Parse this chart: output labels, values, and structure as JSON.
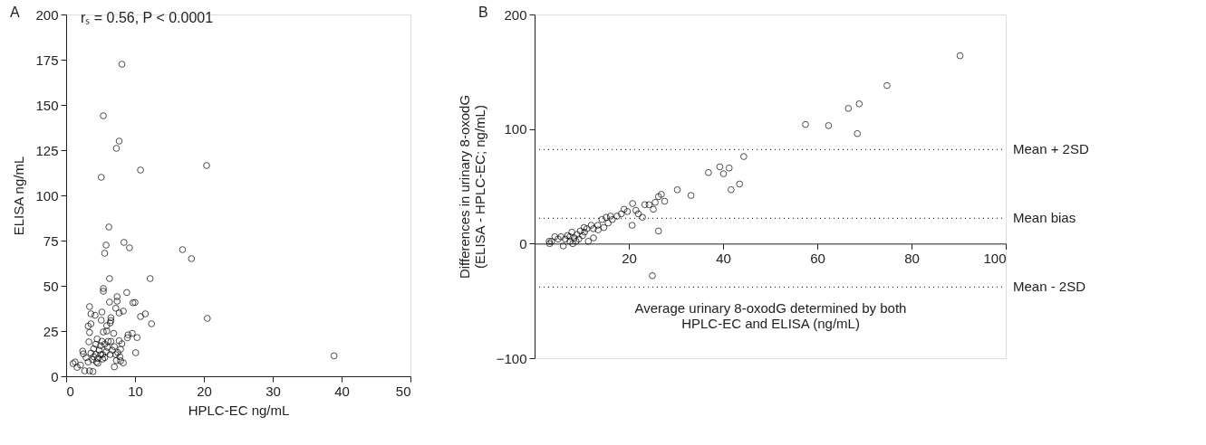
{
  "chart_data": [
    {
      "type": "scatter",
      "xlabel": "HPLC-EC ng/mL",
      "ylabel": "ELISA ng/mL",
      "annotations": [
        "A",
        "rₛ = 0.56, P < 0.0001"
      ],
      "xlim": [
        0,
        50
      ],
      "xticks": [
        0,
        10,
        20,
        30,
        40,
        50
      ],
      "ylim": [
        0,
        200
      ],
      "yticks": [
        0,
        25,
        50,
        75,
        100,
        125,
        150,
        175,
        200
      ],
      "grid": false,
      "marker": "circle",
      "series": [
        {
          "color": "#000000",
          "x": [
            8.1,
            5.4,
            7.7,
            7.3,
            10.8,
            20.4,
            5.1,
            6.2,
            8.4,
            5.8,
            9.2,
            5.6,
            16.9,
            18.2,
            6.3,
            12.2,
            5.4,
            5.4,
            8.8,
            7.4,
            7.4,
            6.3,
            9.7,
            10.0,
            3.4,
            7.2,
            8.3,
            7.7,
            5.2,
            3.6,
            4.2,
            6.5,
            11.5,
            10.8,
            5.1,
            6.5,
            6.4,
            12.4,
            20.5,
            3.2,
            3.6,
            5.9,
            3.4,
            5.4,
            5.9,
            6.9,
            9.0,
            9.6,
            8.9,
            10.3,
            3.3,
            4.5,
            5.2,
            6.1,
            6.5,
            7.7,
            8.1,
            7.9,
            10.1,
            2.4,
            2.5,
            1.0,
            1.3,
            1.6,
            2.1,
            2.7,
            3.4,
            3.9,
            7.0,
            8.3,
            7.9,
            7.3,
            38.9,
            2.9,
            3.6,
            4.0,
            4.3,
            4.6,
            4.8,
            5.0,
            5.3,
            5.6,
            5.8,
            6.0,
            6.4,
            6.7,
            7.0,
            7.2,
            7.5,
            7.8,
            3.2,
            3.8,
            4.4,
            4.6,
            5.3,
            4.0,
            5.0,
            4.3,
            5.6
          ],
          "values": [
            172.5,
            144,
            130,
            126,
            114,
            116.5,
            110,
            82.5,
            74,
            72.5,
            71,
            68,
            70,
            65,
            54,
            54,
            48.5,
            47,
            46.3,
            44,
            41.5,
            41,
            40.6,
            40.8,
            38.5,
            37.6,
            36,
            35,
            35.5,
            34.5,
            33.7,
            32.4,
            34.5,
            33,
            31,
            30.8,
            29.5,
            29,
            32,
            27.7,
            29,
            28,
            24.2,
            24.5,
            25,
            23.7,
            22.9,
            23.7,
            21.3,
            21.4,
            19,
            20.6,
            19.3,
            19.3,
            19.3,
            19.6,
            18,
            14.9,
            13,
            13.9,
            12.4,
            7,
            7.9,
            4.9,
            6.2,
            3,
            3,
            2.6,
            5.2,
            7.4,
            8.5,
            8.7,
            11.3,
            10.3,
            12.8,
            15.2,
            12,
            9.8,
            14.4,
            16.9,
            12,
            10.3,
            13.6,
            16,
            12,
            14.4,
            16.4,
            12,
            13.1,
            10.8,
            7.9,
            9.2,
            7.9,
            7.2,
            9.5,
            10.8,
            12,
            17.7,
            17.7
          ]
        }
      ]
    },
    {
      "type": "scatter",
      "annotations": [
        "B"
      ],
      "xlabel": "Average urinary 8-oxodG determined by both\nHPLC-EC and ELISA (ng/mL)",
      "ylabel": "Differences in urinary 8-oxodG\n(ELISA - HPLC-EC; ng/mL)",
      "xlim": [
        0,
        100
      ],
      "xticks": [
        20,
        40,
        60,
        80,
        100
      ],
      "ylim": [
        -100,
        200
      ],
      "yticks": [
        {
          "value": -100,
          "label": "−100"
        },
        0,
        100,
        200
      ],
      "grid": false,
      "marker": "circle",
      "ref_lines": [
        {
          "axis": "y",
          "value": 82,
          "label": "Mean + 2SD",
          "color": "#333333",
          "line_style": "dotted"
        },
        {
          "axis": "y",
          "value": 22,
          "label": "Mean bias",
          "color": "#333333",
          "line_style": "dotted"
        },
        {
          "axis": "y",
          "value": -38,
          "label": "Mean - 2SD",
          "color": "#333333",
          "line_style": "dotted"
        }
      ],
      "series": [
        {
          "color": "#000000",
          "x": [
            90.3,
            74.8,
            66.6,
            68.9,
            57.5,
            62.4,
            68.5,
            44.4,
            36.9,
            39.3,
            40.1,
            41.3,
            41.7,
            43.5,
            30.3,
            33.2,
            25,
            26.3,
            20.7,
            27.6,
            26.9,
            26.3,
            25.6,
            25.2,
            24.3,
            23.4,
            22.9,
            22,
            21.5,
            20.8,
            19.7,
            19.0,
            18.4,
            17.5,
            16.5,
            16.1,
            15.6,
            15.2,
            14.7,
            14.3,
            13.4,
            12.5,
            12,
            11.4,
            11.1,
            10.6,
            10.2,
            9.7,
            9.0,
            8.4,
            7.9,
            7.5,
            7.0,
            6.5,
            6.1,
            5.6,
            5.0,
            4.3,
            3.6,
            3.2,
            3.1,
            8.1,
            8.8,
            9.4,
            12.5,
            13.5,
            7.5,
            10.5
          ],
          "values": [
            164,
            138,
            118,
            122,
            104,
            103,
            96,
            76,
            62,
            67,
            61,
            66,
            47,
            52,
            47,
            42,
            -28,
            11,
            16,
            37,
            43,
            41,
            36,
            30,
            34,
            34,
            23,
            26,
            29,
            35,
            28,
            30,
            26,
            24,
            21,
            24,
            18,
            23,
            14,
            21,
            16,
            13,
            16,
            2,
            13,
            10,
            7,
            11,
            8,
            5,
            10,
            2,
            7,
            4,
            -2,
            6,
            4,
            6,
            2,
            0,
            2,
            0,
            2,
            4,
            5,
            12,
            6,
            14
          ]
        }
      ]
    }
  ]
}
